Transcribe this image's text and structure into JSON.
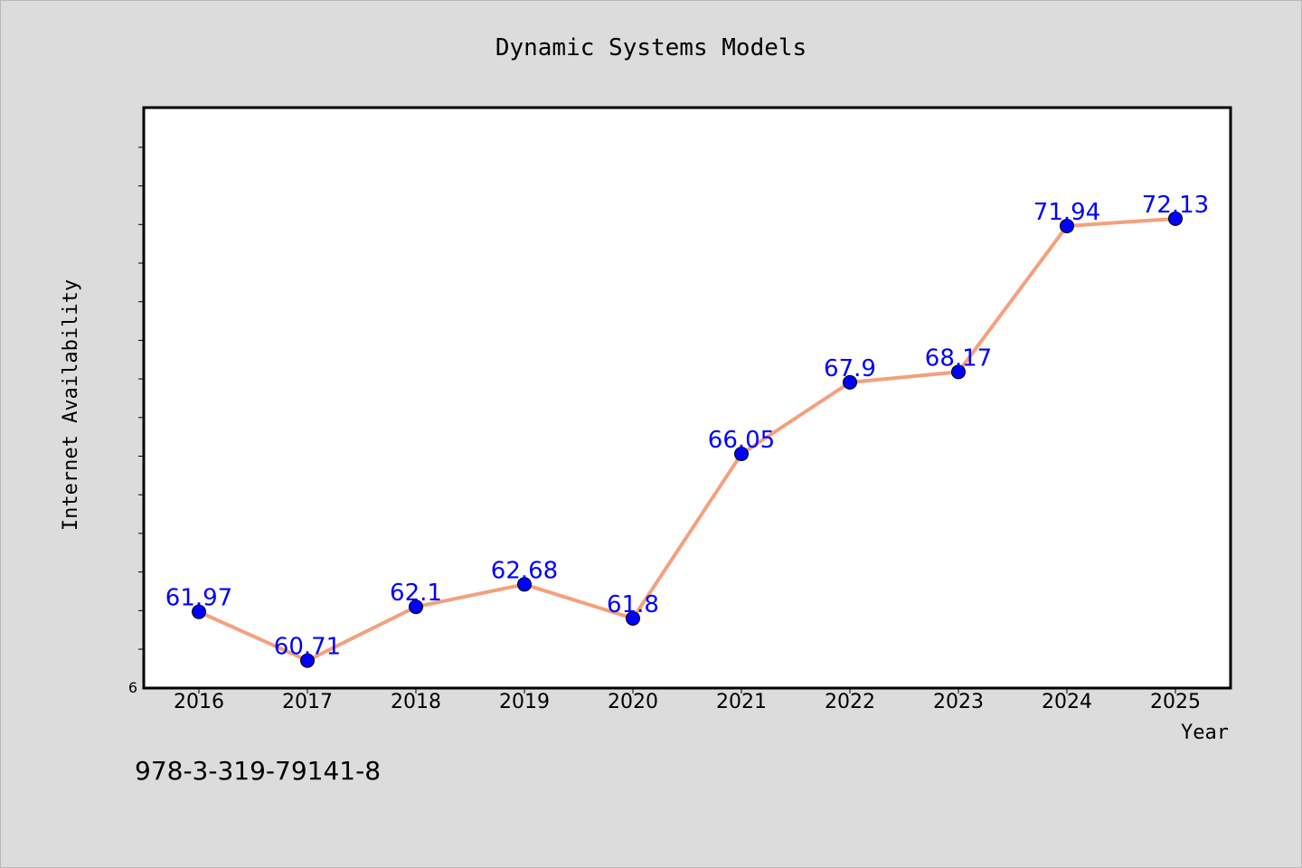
{
  "chart_data": {
    "type": "line",
    "title": "Dynamic Systems Models",
    "xlabel": "Year",
    "ylabel": "Internet Availability",
    "categories": [
      "2016",
      "2017",
      "2018",
      "2019",
      "2020",
      "2021",
      "2022",
      "2023",
      "2024",
      "2025"
    ],
    "series": [
      {
        "values": [
          61.97,
          60.71,
          62.1,
          62.68,
          61.8,
          66.05,
          67.9,
          68.17,
          71.94,
          72.13
        ],
        "labels": [
          "61.97",
          "60.71",
          "62.1",
          "62.68",
          "61.8",
          "66.05",
          "67.9",
          "68.17",
          "71.94",
          "72.13"
        ],
        "line_color": "#f4a07e",
        "marker_color": "#0000ff"
      }
    ],
    "y_tick_label": "6",
    "ylim": [
      60.0,
      75.0
    ],
    "grid": false,
    "legend": "none",
    "label_color": "#0000ff",
    "background": "#dcdcdc",
    "plot_background": "#ffffff"
  },
  "footer": {
    "isbn": "978-3-319-79141-8"
  }
}
